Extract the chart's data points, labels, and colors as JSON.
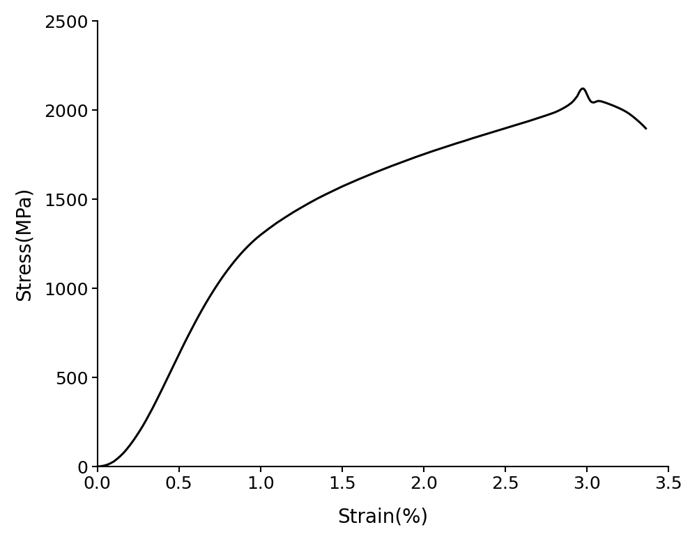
{
  "xlabel": "Strain(%)",
  "ylabel": "Stress(MPa)",
  "xlim": [
    0.0,
    3.5
  ],
  "ylim": [
    0,
    2500
  ],
  "xticks": [
    0.0,
    0.5,
    1.0,
    1.5,
    2.0,
    2.5,
    3.0,
    3.5
  ],
  "yticks": [
    0,
    500,
    1000,
    1500,
    2000,
    2500
  ],
  "line_color": "#000000",
  "line_width": 2.2,
  "background_color": "#ffffff",
  "xlabel_fontsize": 20,
  "ylabel_fontsize": 20,
  "tick_fontsize": 18,
  "curve_points": [
    [
      0.0,
      0
    ],
    [
      0.02,
      2
    ],
    [
      0.04,
      5
    ],
    [
      0.06,
      10
    ],
    [
      0.08,
      18
    ],
    [
      0.1,
      28
    ],
    [
      0.12,
      42
    ],
    [
      0.14,
      58
    ],
    [
      0.16,
      76
    ],
    [
      0.18,
      97
    ],
    [
      0.2,
      120
    ],
    [
      0.22,
      145
    ],
    [
      0.24,
      172
    ],
    [
      0.26,
      200
    ],
    [
      0.28,
      230
    ],
    [
      0.3,
      262
    ],
    [
      0.32,
      296
    ],
    [
      0.34,
      330
    ],
    [
      0.36,
      366
    ],
    [
      0.38,
      403
    ],
    [
      0.4,
      440
    ],
    [
      0.42,
      478
    ],
    [
      0.44,
      516
    ],
    [
      0.46,
      554
    ],
    [
      0.48,
      592
    ],
    [
      0.5,
      630
    ],
    [
      0.52,
      667
    ],
    [
      0.54,
      704
    ],
    [
      0.56,
      740
    ],
    [
      0.58,
      775
    ],
    [
      0.6,
      810
    ],
    [
      0.62,
      844
    ],
    [
      0.64,
      877
    ],
    [
      0.66,
      909
    ],
    [
      0.68,
      940
    ],
    [
      0.7,
      970
    ],
    [
      0.72,
      999
    ],
    [
      0.74,
      1027
    ],
    [
      0.76,
      1054
    ],
    [
      0.78,
      1080
    ],
    [
      0.8,
      1105
    ],
    [
      0.82,
      1129
    ],
    [
      0.84,
      1152
    ],
    [
      0.86,
      1174
    ],
    [
      0.88,
      1195
    ],
    [
      0.9,
      1215
    ],
    [
      0.92,
      1234
    ],
    [
      0.94,
      1252
    ],
    [
      0.96,
      1269
    ],
    [
      0.98,
      1285
    ],
    [
      1.0,
      1300
    ],
    [
      1.05,
      1335
    ],
    [
      1.1,
      1368
    ],
    [
      1.15,
      1398
    ],
    [
      1.2,
      1427
    ],
    [
      1.25,
      1454
    ],
    [
      1.3,
      1480
    ],
    [
      1.35,
      1505
    ],
    [
      1.4,
      1528
    ],
    [
      1.45,
      1550
    ],
    [
      1.5,
      1572
    ],
    [
      1.55,
      1592
    ],
    [
      1.6,
      1612
    ],
    [
      1.65,
      1631
    ],
    [
      1.7,
      1650
    ],
    [
      1.75,
      1668
    ],
    [
      1.8,
      1686
    ],
    [
      1.85,
      1703
    ],
    [
      1.9,
      1720
    ],
    [
      1.95,
      1737
    ],
    [
      2.0,
      1753
    ],
    [
      2.05,
      1769
    ],
    [
      2.1,
      1784
    ],
    [
      2.15,
      1799
    ],
    [
      2.2,
      1814
    ],
    [
      2.25,
      1828
    ],
    [
      2.3,
      1843
    ],
    [
      2.35,
      1857
    ],
    [
      2.4,
      1871
    ],
    [
      2.45,
      1885
    ],
    [
      2.5,
      1899
    ],
    [
      2.55,
      1913
    ],
    [
      2.6,
      1927
    ],
    [
      2.65,
      1941
    ],
    [
      2.7,
      1956
    ],
    [
      2.75,
      1971
    ],
    [
      2.8,
      1987
    ],
    [
      2.82,
      1995
    ],
    [
      2.84,
      2004
    ],
    [
      2.86,
      2014
    ],
    [
      2.88,
      2025
    ],
    [
      2.9,
      2038
    ],
    [
      2.91,
      2046
    ],
    [
      2.92,
      2056
    ],
    [
      2.93,
      2067
    ],
    [
      2.94,
      2079
    ],
    [
      2.945,
      2088
    ],
    [
      2.95,
      2097
    ],
    [
      2.955,
      2106
    ],
    [
      2.96,
      2113
    ],
    [
      2.965,
      2118
    ],
    [
      2.97,
      2121
    ],
    [
      2.975,
      2122
    ],
    [
      2.98,
      2120
    ],
    [
      2.985,
      2115
    ],
    [
      2.99,
      2108
    ],
    [
      2.995,
      2098
    ],
    [
      3.0,
      2088
    ],
    [
      3.005,
      2078
    ],
    [
      3.01,
      2068
    ],
    [
      3.015,
      2060
    ],
    [
      3.02,
      2053
    ],
    [
      3.025,
      2048
    ],
    [
      3.03,
      2045
    ],
    [
      3.04,
      2043
    ],
    [
      3.05,
      2046
    ],
    [
      3.06,
      2050
    ],
    [
      3.07,
      2052
    ],
    [
      3.08,
      2051
    ],
    [
      3.09,
      2049
    ],
    [
      3.1,
      2046
    ],
    [
      3.12,
      2040
    ],
    [
      3.14,
      2033
    ],
    [
      3.16,
      2026
    ],
    [
      3.18,
      2018
    ],
    [
      3.2,
      2010
    ],
    [
      3.22,
      2001
    ],
    [
      3.24,
      1991
    ],
    [
      3.26,
      1979
    ],
    [
      3.28,
      1965
    ],
    [
      3.3,
      1950
    ],
    [
      3.32,
      1934
    ],
    [
      3.34,
      1917
    ],
    [
      3.36,
      1898
    ]
  ]
}
